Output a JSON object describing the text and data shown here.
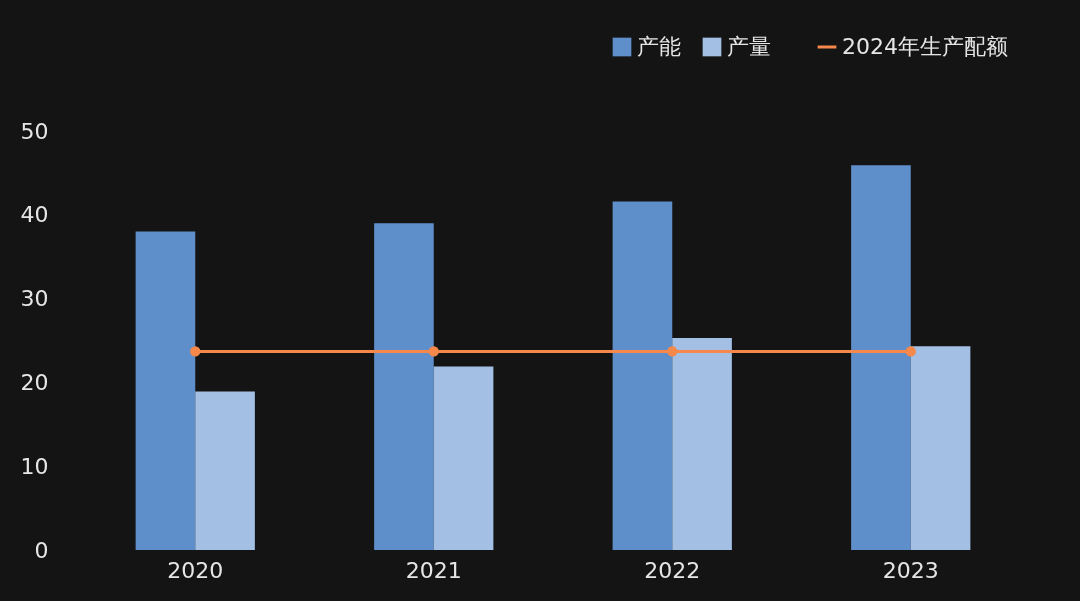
{
  "chart_data": {
    "type": "bar",
    "categories": [
      "2020",
      "2021",
      "2022",
      "2023"
    ],
    "series": [
      {
        "name": "产能",
        "color": "#5f8fcb",
        "values": [
          38,
          39,
          41.6,
          45.9
        ]
      },
      {
        "name": "产量",
        "color": "#a3bfe3",
        "values": [
          18.9,
          21.9,
          25.3,
          24.3
        ]
      },
      {
        "name": "2024年生产配额",
        "color": "#f5884a",
        "type": "line",
        "values": [
          23.7,
          23.7,
          23.7,
          23.7
        ]
      }
    ],
    "ylim": [
      0,
      50
    ],
    "yticks": [
      0,
      10,
      20,
      30,
      40,
      50
    ],
    "grid": false,
    "legend": "top right",
    "marker": "circle"
  }
}
